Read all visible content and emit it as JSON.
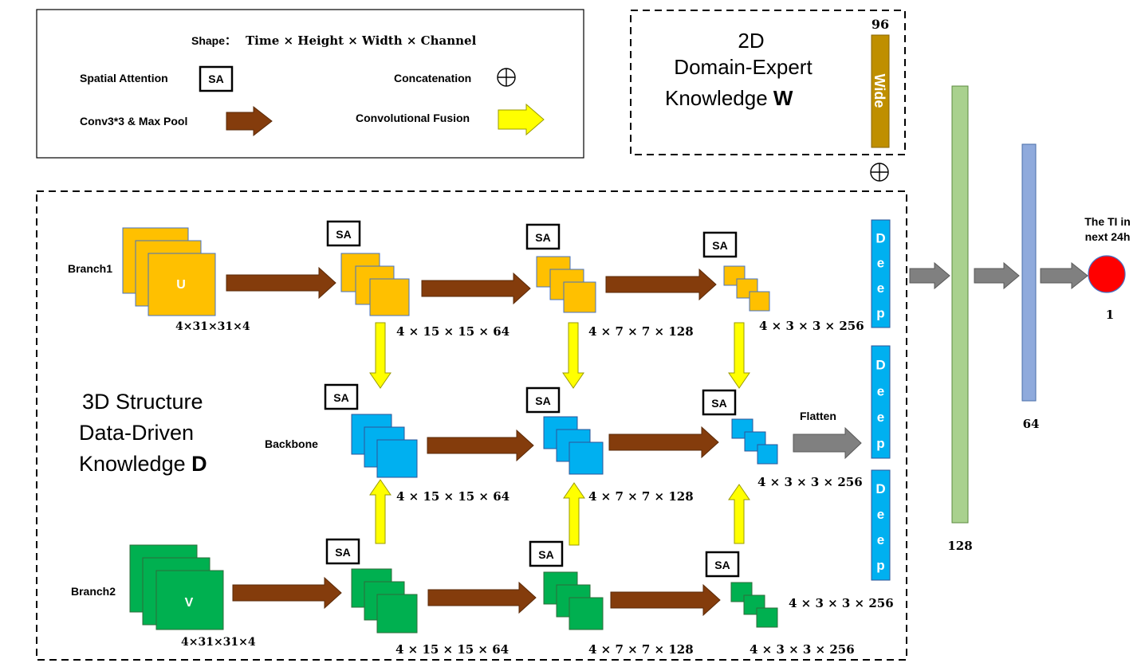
{
  "legend": {
    "shape_label": "Shape：",
    "shape_dims": "Time × Height × Width × Channel",
    "spatial_attention": "Spatial Attention",
    "sa": "SA",
    "concatenation": "Concatenation",
    "conv_pool": "Conv3*3 & Max Pool",
    "conv_fusion": "Convolutional Fusion"
  },
  "wide_box": {
    "line1": "2D",
    "line2": "Domain-Expert",
    "line3": "Knowledge ",
    "bold": "W",
    "bar_label": "Wide",
    "bar_size": "96"
  },
  "struct": {
    "line1": "3D Structure",
    "line2": "Data-Driven",
    "line3": "Knowledge ",
    "bold": "D"
  },
  "rows": {
    "branch1": "Branch1",
    "backbone": "Backbone",
    "branch2": "Branch2",
    "u": "U",
    "v": "V"
  },
  "dims": {
    "input": "4×31×31×4",
    "s1": "4 × 15 × 15 × 64",
    "s2": "4 × 7 × 7 × 128",
    "s3": "4 × 3 × 3 × 256"
  },
  "deep_label": "Deep",
  "flatten": "Flatten",
  "dense": {
    "d128": "128",
    "d64": "64",
    "out": "1"
  },
  "output_label_1": "The TI in",
  "output_label_2": "next 24h",
  "colors": {
    "orange": "#FFC000",
    "blue": "#00B0F0",
    "green": "#00B050",
    "brown_arrow": "#843C0C",
    "yellow_arrow": "#FFFF00",
    "gray_arrow": "#808080",
    "wide_bar": "#BF8F00",
    "dense_green": "#A9D18E",
    "dense_blue": "#8FAADC",
    "output": "#FF0000"
  }
}
